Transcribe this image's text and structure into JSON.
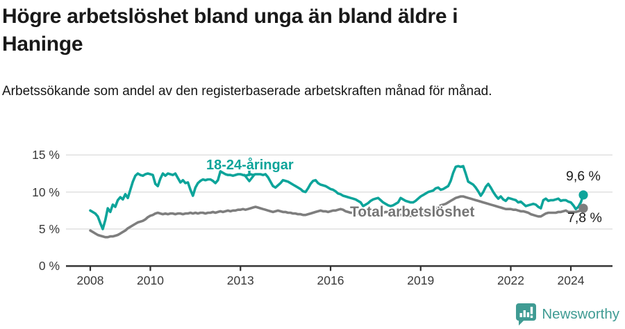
{
  "header": {
    "title": "Högre arbetslöshet bland unga än bland äldre i Haninge",
    "subtitle": "Arbetssökande som andel av den registerbaserade arbetskraften månad för månad."
  },
  "annotations": {
    "youth_label": "18-24-åringar",
    "total_label": "Total arbetslöshet",
    "youth_end_value": "9,6 %",
    "total_end_value": "7,8 %"
  },
  "branding": {
    "logo_text": "Newsworthy",
    "logo_color": "#3f9b93"
  },
  "chart_data": {
    "type": "line",
    "title": "Högre arbetslöshet bland unga än bland äldre i Haninge",
    "subtitle": "Arbetssökande som andel av den registerbaserade arbetskraften månad för månad.",
    "x_unit": "month",
    "x_start_year": 2008,
    "x_end_label": "2024",
    "x_tick_years": [
      2008,
      2010,
      2013,
      2016,
      2019,
      2022,
      2024
    ],
    "x_tick_labels": [
      "2008",
      "2010",
      "2013",
      "2016",
      "2019",
      "2022",
      "2024"
    ],
    "y_ticks": [
      0,
      5,
      10,
      15
    ],
    "y_tick_labels": [
      "0 %",
      "5 %",
      "10 %",
      "15 %"
    ],
    "ylim": [
      0,
      16.5
    ],
    "grid": "horizontal",
    "gridline_color": "#dedede",
    "axis_color": "#2e2e2e",
    "legend_position": "inline-labels",
    "series": [
      {
        "name": "18-24-åringar",
        "color": "#0da49a",
        "end_label": "9,6 %",
        "end_value": 9.6,
        "values": [
          7.5,
          7.3,
          7.1,
          6.7,
          5.8,
          5.0,
          6.2,
          7.8,
          7.3,
          8.3,
          8.0,
          8.9,
          9.3,
          9.0,
          9.7,
          9.2,
          10.3,
          11.4,
          12.2,
          12.5,
          12.3,
          12.2,
          12.4,
          12.5,
          12.4,
          12.3,
          11.1,
          10.8,
          11.8,
          12.5,
          12.2,
          12.5,
          12.4,
          12.3,
          12.5,
          11.9,
          11.3,
          11.6,
          11.2,
          11.3,
          10.3,
          9.5,
          10.6,
          11.2,
          11.5,
          11.7,
          11.6,
          11.7,
          11.7,
          11.5,
          11.2,
          11.6,
          12.8,
          12.6,
          12.4,
          12.3,
          12.3,
          12.2,
          12.3,
          12.4,
          12.4,
          12.3,
          12.2,
          12.3,
          12.4,
          12.3,
          12.4,
          12.4,
          12.4,
          12.3,
          12.4,
          12.0,
          11.4,
          10.8,
          10.6,
          10.9,
          11.2,
          11.6,
          11.5,
          11.4,
          11.2,
          11.0,
          10.8,
          10.6,
          10.4,
          10.1,
          10.0,
          10.5,
          11.1,
          11.5,
          11.6,
          11.2,
          11.0,
          10.9,
          10.8,
          10.6,
          10.4,
          10.3,
          10.1,
          9.8,
          9.7,
          9.5,
          9.4,
          9.3,
          9.2,
          9.1,
          9.0,
          8.8,
          8.6,
          8.1,
          8.3,
          8.5,
          8.8,
          9.0,
          9.1,
          9.2,
          8.9,
          8.6,
          8.4,
          8.2,
          8.1,
          8.2,
          8.4,
          8.6,
          9.2,
          9.0,
          8.8,
          8.7,
          8.6,
          8.6,
          8.8,
          9.1,
          9.4,
          9.6,
          9.8,
          10.0,
          10.1,
          10.2,
          10.5,
          10.6,
          10.3,
          10.4,
          10.6,
          10.8,
          11.5,
          12.6,
          13.4,
          13.5,
          13.4,
          13.5,
          12.5,
          11.4,
          11.2,
          11.0,
          10.6,
          10.1,
          9.5,
          10.0,
          10.7,
          11.1,
          10.6,
          10.0,
          9.5,
          9.1,
          9.4,
          9.0,
          8.8,
          9.2,
          9.1,
          9.0,
          8.9,
          8.6,
          8.7,
          8.4,
          8.1,
          8.2,
          8.3,
          8.4,
          8.3,
          8.0,
          7.8,
          8.9,
          9.1,
          8.8,
          8.9,
          8.9,
          9.0,
          9.1,
          8.8,
          8.9,
          8.9,
          8.7,
          8.6,
          8.2,
          7.7,
          8.0,
          8.6,
          9.6
        ]
      },
      {
        "name": "Total arbetslöshet",
        "color": "#7e7e7e",
        "end_label": "7,8 %",
        "end_value": 7.8,
        "values": [
          4.8,
          4.6,
          4.4,
          4.2,
          4.1,
          4.0,
          3.9,
          3.9,
          4.0,
          4.0,
          4.1,
          4.2,
          4.4,
          4.6,
          4.8,
          5.1,
          5.3,
          5.5,
          5.7,
          5.9,
          6.0,
          6.1,
          6.3,
          6.6,
          6.8,
          6.9,
          7.1,
          7.2,
          7.1,
          7.0,
          7.1,
          7.0,
          7.1,
          7.1,
          7.0,
          7.1,
          7.1,
          7.0,
          7.1,
          7.1,
          7.2,
          7.1,
          7.2,
          7.1,
          7.2,
          7.2,
          7.1,
          7.2,
          7.2,
          7.3,
          7.2,
          7.3,
          7.4,
          7.3,
          7.4,
          7.5,
          7.4,
          7.5,
          7.5,
          7.6,
          7.6,
          7.7,
          7.6,
          7.7,
          7.8,
          7.9,
          8.0,
          7.9,
          7.8,
          7.7,
          7.6,
          7.5,
          7.4,
          7.3,
          7.4,
          7.5,
          7.4,
          7.3,
          7.3,
          7.2,
          7.2,
          7.1,
          7.1,
          7.0,
          7.0,
          6.9,
          6.9,
          7.0,
          7.1,
          7.2,
          7.3,
          7.4,
          7.5,
          7.4,
          7.4,
          7.3,
          7.4,
          7.5,
          7.5,
          7.6,
          7.7,
          7.6,
          7.4,
          7.3,
          7.2,
          7.2,
          7.1,
          7.1,
          7.1,
          7.0,
          7.1,
          7.0,
          7.1,
          7.1,
          7.2,
          7.1,
          7.2,
          7.2,
          7.3,
          7.3,
          7.2,
          7.1,
          7.0,
          7.0,
          6.9,
          6.9,
          6.9,
          6.8,
          6.8,
          6.8,
          6.8,
          6.9,
          6.9,
          7.0,
          7.0,
          7.1,
          7.3,
          7.6,
          7.8,
          8.0,
          8.2,
          8.3,
          8.4,
          8.6,
          8.8,
          9.0,
          9.2,
          9.3,
          9.4,
          9.4,
          9.3,
          9.2,
          9.1,
          9.0,
          8.9,
          8.8,
          8.7,
          8.6,
          8.5,
          8.4,
          8.3,
          8.2,
          8.1,
          8.0,
          7.9,
          7.8,
          7.7,
          7.7,
          7.7,
          7.6,
          7.6,
          7.5,
          7.4,
          7.4,
          7.3,
          7.2,
          7.0,
          6.9,
          6.8,
          6.7,
          6.7,
          6.9,
          7.1,
          7.2,
          7.2,
          7.2,
          7.2,
          7.3,
          7.3,
          7.4,
          7.5,
          7.3,
          7.3,
          7.3,
          7.3,
          7.4,
          7.5,
          7.8
        ]
      }
    ]
  }
}
